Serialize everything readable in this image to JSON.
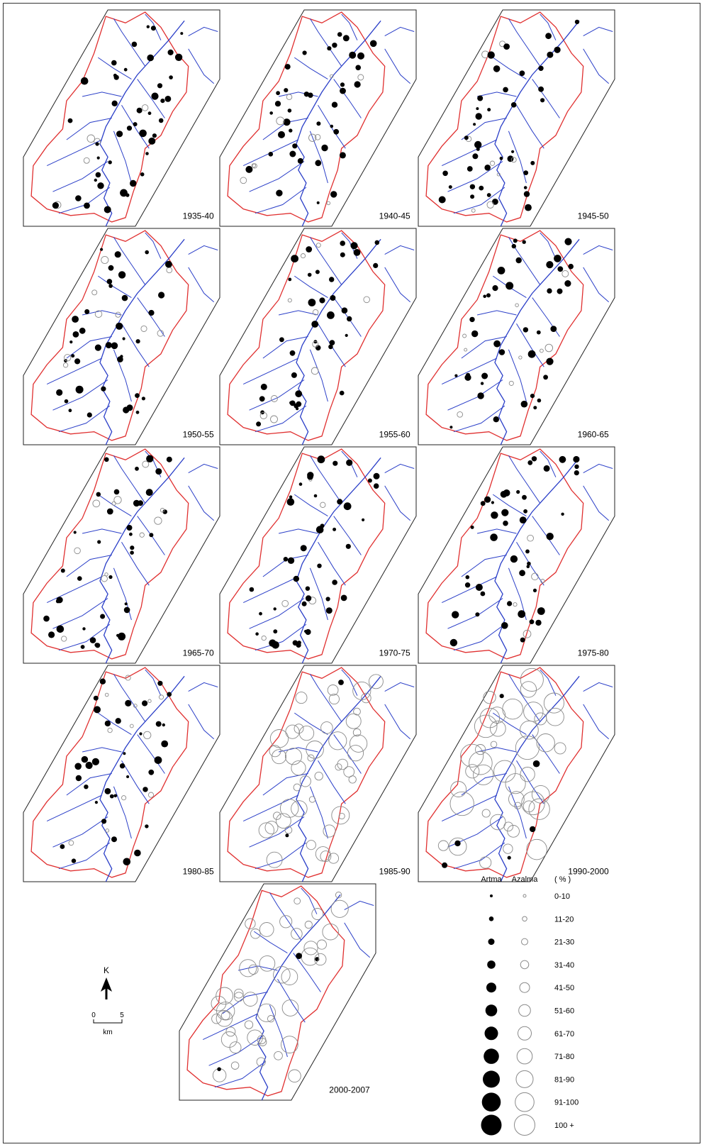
{
  "panels": [
    {
      "label": "1935-40",
      "seed": 11
    },
    {
      "label": "1940-45",
      "seed": 23
    },
    {
      "label": "1945-50",
      "seed": 37
    },
    {
      "label": "1950-55",
      "seed": 41
    },
    {
      "label": "1955-60",
      "seed": 53
    },
    {
      "label": "1960-65",
      "seed": 67
    },
    {
      "label": "1965-70",
      "seed": 71
    },
    {
      "label": "1970-75",
      "seed": 83
    },
    {
      "label": "1975-80",
      "seed": 97
    },
    {
      "label": "1980-85",
      "seed": 101
    },
    {
      "label": "1985-90",
      "seed": 113
    },
    {
      "label": "1990-2000",
      "seed": 127
    },
    {
      "label": "2000-2007",
      "seed": 131
    }
  ],
  "legend": {
    "increase_label": "Artma",
    "decrease_label": "Azalma",
    "unit_label": "( % )",
    "classes": [
      "0-10",
      "11-20",
      "21-30",
      "31-40",
      "41-50",
      "51-60",
      "61-70",
      "71-80",
      "81-90",
      "91-100",
      "100 +"
    ]
  },
  "north_arrow": {
    "label": "K"
  },
  "scale_bar": {
    "start": "0",
    "end": "5",
    "unit": "km"
  },
  "colors": {
    "boundary": "#e03030",
    "rivers": "#2b3fc8",
    "increase": "#000000",
    "decrease_stroke": "#8a8a8a"
  }
}
